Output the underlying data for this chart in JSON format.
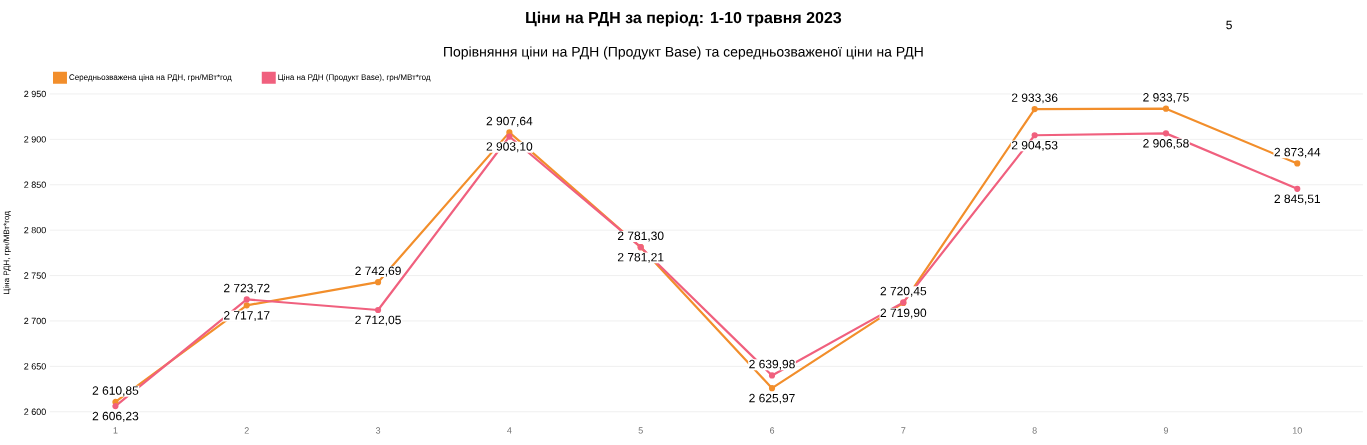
{
  "chart_data": {
    "type": "line",
    "title": "Ціни на РДН за період: 1-10 травня 2023",
    "subtitle": "Порівняння ціни на РДН (Продукт Base) та середньозваженої ціни на РДН",
    "ylabel": "Ціна РДН, грн/МВт*год",
    "categories": [
      "1",
      "2",
      "3",
      "4",
      "5",
      "6",
      "7",
      "8",
      "9",
      "10"
    ],
    "series": [
      {
        "name": "Середньозважена ціна на РДН, грн/МВт*год",
        "color": "#f28e2b",
        "values": [
          2610.85,
          2717.17,
          2742.69,
          2907.64,
          2781.21,
          2625.97,
          2719.9,
          2933.36,
          2933.75,
          2873.44
        ],
        "value_labels": [
          "2 610,85",
          "2 717,17",
          "2 742,69",
          "2 907,64",
          "2 781,21",
          "2 625,97",
          "2 719,90",
          "2 933,36",
          "2 933,75",
          "2 873,44"
        ]
      },
      {
        "name": "Ціна на РДН (Продукт Base), грн/МВт*год",
        "color": "#f0607e",
        "values": [
          2606.23,
          2723.72,
          2712.05,
          2903.1,
          2781.3,
          2639.98,
          2720.45,
          2904.53,
          2906.58,
          2845.51
        ],
        "value_labels": [
          "2 606,23",
          "2 723,72",
          "2 712,05",
          "2 903,10",
          "2 781,30",
          "2 639,98",
          "2 720,45",
          "2 904,53",
          "2 906,58",
          "2 845,51"
        ]
      }
    ],
    "ylim": [
      2600,
      2950
    ],
    "yticks": [
      {
        "value": 2600,
        "label": "2 600"
      },
      {
        "value": 2650,
        "label": "2 650"
      },
      {
        "value": 2700,
        "label": "2 700"
      },
      {
        "value": 2750,
        "label": "2 750"
      },
      {
        "value": 2800,
        "label": "2 800"
      },
      {
        "value": 2850,
        "label": "2 850"
      },
      {
        "value": 2900,
        "label": "2 900"
      },
      {
        "value": 2950,
        "label": "2 950"
      }
    ],
    "grid": "y",
    "legend": "top left",
    "marker": "circle",
    "line_style": "solid",
    "annotations": [
      "5"
    ]
  }
}
